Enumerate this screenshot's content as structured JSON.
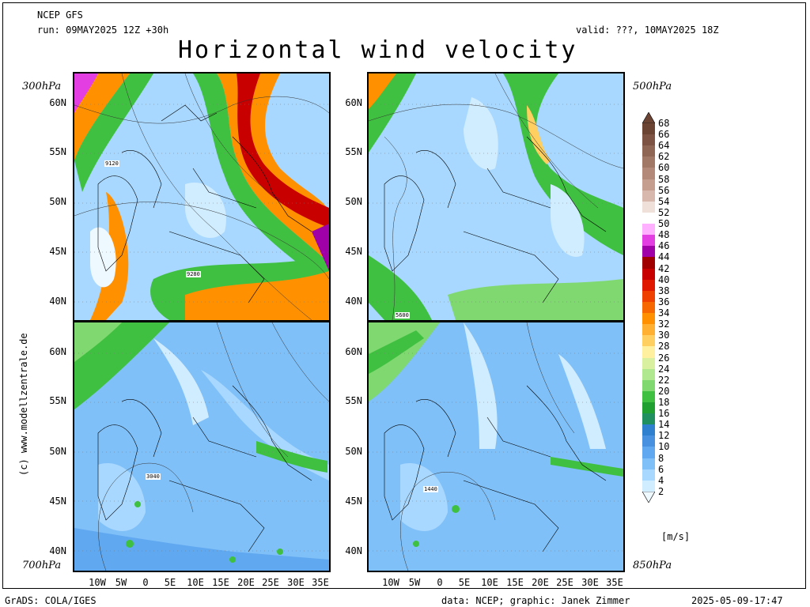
{
  "header": {
    "model": "NCEP GFS",
    "run": "run: 09MAY2025 12Z +30h",
    "valid": "valid: ???, 10MAY2025 18Z",
    "title": "Horizontal wind velocity"
  },
  "levels": {
    "top_left": "300hPa",
    "top_right": "500hPa",
    "bottom_left": "700hPa",
    "bottom_right": "850hPa"
  },
  "axes": {
    "lat_top": [
      "60N",
      "55N",
      "50N",
      "45N",
      "40N"
    ],
    "lat_bottom": [
      "60N",
      "55N",
      "50N",
      "45N",
      "40N"
    ],
    "lon": [
      "10W",
      "5W",
      "0",
      "5E",
      "10E",
      "15E",
      "20E",
      "25E",
      "30E",
      "35E"
    ]
  },
  "contour_labels": {
    "top_left_1": "9120",
    "top_left_2": "9280",
    "top_right_1": "5600",
    "bottom_left_1": "3040",
    "bottom_right_1": "1440"
  },
  "colorbar": {
    "labels": [
      "68",
      "66",
      "64",
      "62",
      "60",
      "58",
      "56",
      "54",
      "52",
      "50",
      "48",
      "46",
      "44",
      "42",
      "40",
      "38",
      "36",
      "34",
      "32",
      "30",
      "28",
      "26",
      "24",
      "22",
      "20",
      "18",
      "16",
      "14",
      "12",
      "10",
      "8",
      "6",
      "4",
      "2"
    ],
    "colors": [
      "#6b4434",
      "#7d5444",
      "#8f6554",
      "#a17766",
      "#b38a7a",
      "#c59e90",
      "#d8b8ad",
      "#efe0da",
      "#ffffff",
      "#ffb0ff",
      "#e23ee2",
      "#a000a8",
      "#a00000",
      "#c80000",
      "#e01800",
      "#f04000",
      "#f86800",
      "#ff9000",
      "#ffb030",
      "#ffd060",
      "#fff0a0",
      "#d8f0a0",
      "#b0e890",
      "#80d870",
      "#40c040",
      "#20a030",
      "#209060",
      "#3080d0",
      "#4890e0",
      "#60a8f0",
      "#80c0f8",
      "#a8d8ff",
      "#d0ecff",
      "#eef8ff"
    ],
    "unit": "[m/s]"
  },
  "footer": {
    "left": "GrADS: COLA/IGES",
    "middle": "data: NCEP; graphic: Janek Zimmer",
    "right": "2025-05-09-17:47"
  },
  "credit": "(c) www.modellzentrale.de"
}
